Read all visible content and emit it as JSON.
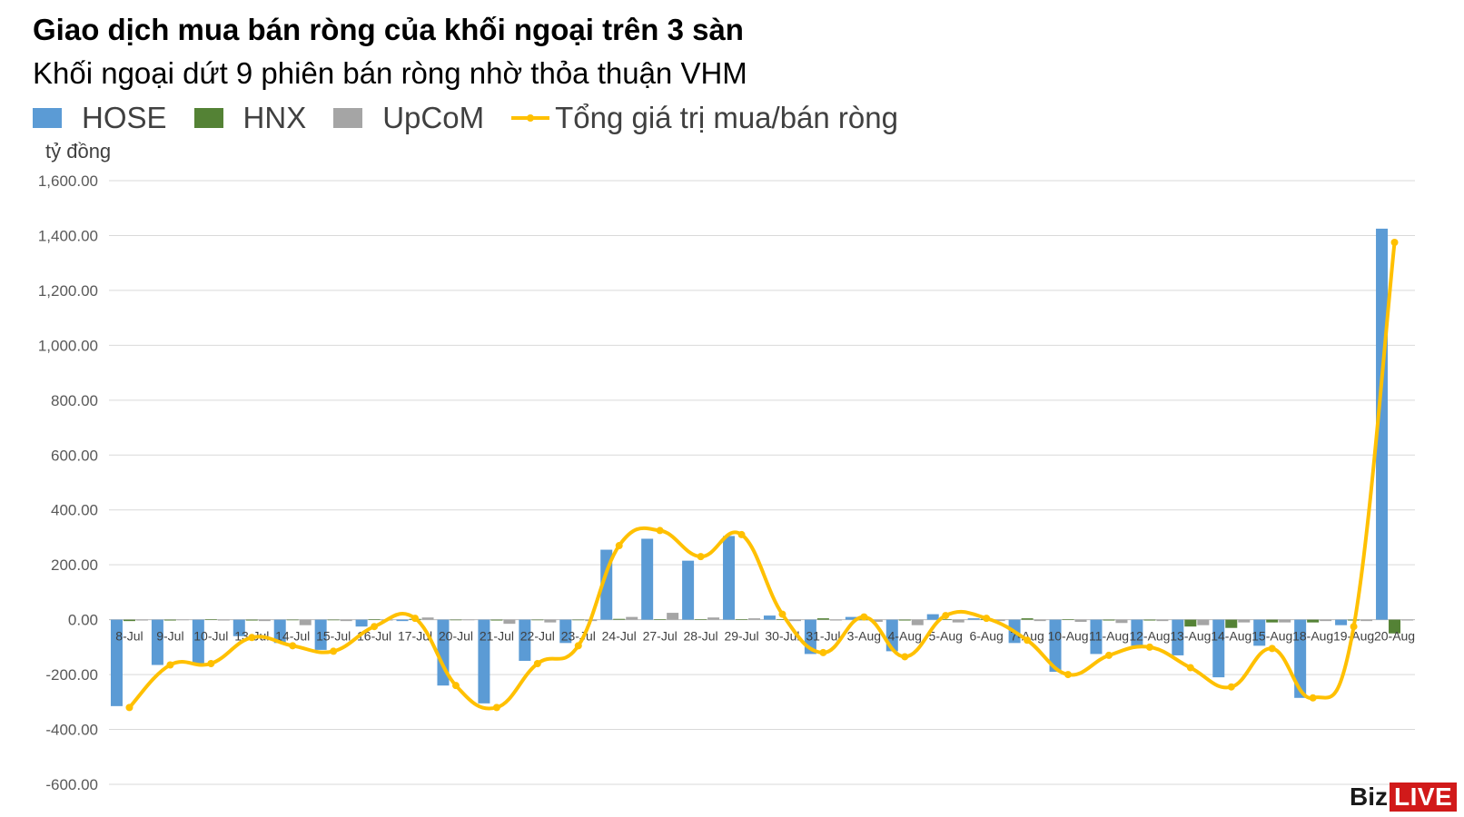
{
  "chart_data": {
    "type": "bar",
    "title": "Giao dịch mua bán ròng của khối ngoại trên 3 sàn",
    "subtitle": "Khối ngoại dứt 9 phiên bán ròng nhờ thỏa thuận VHM",
    "ylabel": "tỷ đồng",
    "ylim": [
      -600,
      1600
    ],
    "ytick_step": 200,
    "ytick_labels": [
      "-600.00",
      "-400.00",
      "-200.00",
      "0.00",
      "200.00",
      "400.00",
      "600.00",
      "800.00",
      "1,000.00",
      "1,200.00",
      "1,400.00",
      "1,600.00"
    ],
    "grid": true,
    "legend_position": "top-left",
    "categories": [
      "8-Jul",
      "9-Jul",
      "10-Jul",
      "13-Jul",
      "14-Jul",
      "15-Jul",
      "16-Jul",
      "17-Jul",
      "20-Jul",
      "21-Jul",
      "22-Jul",
      "23-Jul",
      "24-Jul",
      "27-Jul",
      "28-Jul",
      "29-Jul",
      "30-Jul",
      "31-Jul",
      "3-Aug",
      "4-Aug",
      "5-Aug",
      "6-Aug",
      "7-Aug",
      "10-Aug",
      "11-Aug",
      "12-Aug",
      "13-Aug",
      "14-Aug",
      "15-Aug",
      "18-Aug",
      "19-Aug",
      "20-Aug"
    ],
    "series": [
      {
        "name": "HOSE",
        "type": "bar",
        "color": "#5B9BD5",
        "values": [
          -315,
          -165,
          -160,
          -60,
          -85,
          -110,
          -25,
          -5,
          -240,
          -305,
          -150,
          -85,
          255,
          295,
          215,
          305,
          15,
          -125,
          10,
          -115,
          20,
          5,
          -85,
          -190,
          -125,
          -95,
          -130,
          -210,
          -95,
          -285,
          -20,
          1425
        ]
      },
      {
        "name": "HNX",
        "type": "bar",
        "color": "#548235",
        "values": [
          -5,
          -3,
          2,
          -3,
          -2,
          -2,
          2,
          3,
          -2,
          -3,
          -2,
          -2,
          3,
          2,
          2,
          2,
          2,
          5,
          -2,
          -3,
          2,
          3,
          5,
          2,
          -3,
          -3,
          -25,
          -30,
          -10,
          -10,
          -3,
          -50
        ]
      },
      {
        "name": "UpCoM",
        "type": "bar",
        "color": "#A5A5A5",
        "values": [
          -3,
          -2,
          -3,
          -5,
          -20,
          -5,
          -3,
          8,
          -2,
          -15,
          -10,
          -5,
          10,
          25,
          8,
          5,
          -5,
          -3,
          -8,
          -20,
          -10,
          -5,
          -5,
          -8,
          -12,
          -5,
          -20,
          -10,
          -10,
          -5,
          -5,
          -3
        ]
      },
      {
        "name": "Tổng giá trị mua/bán ròng",
        "type": "line",
        "color": "#FFC000",
        "values": [
          -320,
          -165,
          -160,
          -65,
          -95,
          -115,
          -25,
          5,
          -240,
          -320,
          -160,
          -95,
          270,
          325,
          230,
          310,
          20,
          -120,
          10,
          -135,
          15,
          5,
          -75,
          -200,
          -130,
          -100,
          -175,
          -245,
          -105,
          -285,
          -25,
          1375
        ]
      }
    ]
  },
  "watermark": {
    "part1": "Biz",
    "part2": "LIVE"
  }
}
